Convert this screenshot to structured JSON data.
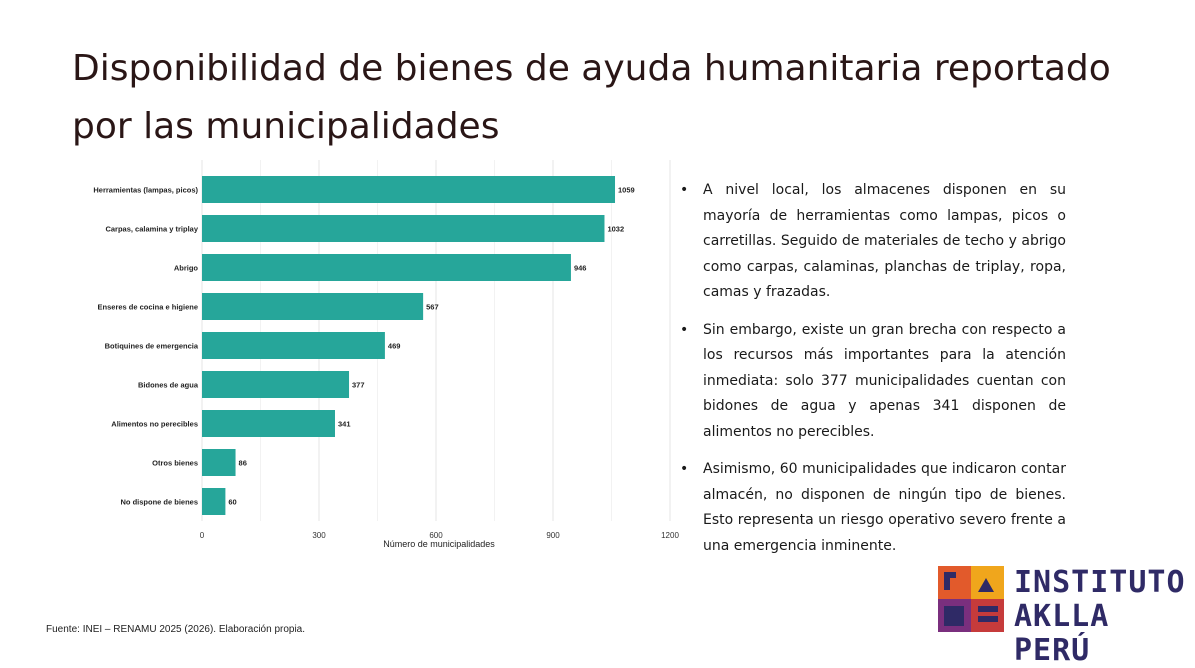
{
  "title": "Disponibilidad de bienes de ayuda humanitaria reportado por las municipalidades",
  "chart_data": {
    "type": "bar",
    "orientation": "horizontal",
    "categories": [
      "Herramientas (lampas, picos)",
      "Carpas, calamina y triplay",
      "Abrigo",
      "Enseres de cocina e higiene",
      "Botiquines de emergencia",
      "Bidones de agua",
      "Alimentos no perecibles",
      "Otros bienes",
      "No dispone de bienes"
    ],
    "values": [
      1059,
      1032,
      946,
      567,
      469,
      377,
      341,
      86,
      60
    ],
    "xlabel": "Número de municipalidades",
    "ylabel": "",
    "xlim": [
      0,
      1200
    ],
    "xticks": [
      0,
      300,
      600,
      900,
      1200
    ],
    "grid": true,
    "bar_color": "#26a69a"
  },
  "bullets": [
    "A nivel local, los almacenes disponen en su mayoría de herramientas como lampas, picos o carretillas. Seguido de materiales de techo y abrigo como carpas, calaminas, planchas de triplay, ropa, camas y frazadas.",
    "Sin embargo, existe un gran brecha con respecto a los recursos más importantes para la atención inmediata: solo 377 municipalidades cuentan con bidones de agua y apenas 341 disponen de alimentos no perecibles.",
    "Asimismo, 60 municipalidades que indicaron contar almacén, no disponen de ningún tipo de bienes. Esto representa un riesgo operativo severo frente a una emergencia inminente."
  ],
  "bullet_marker": "•",
  "source": "Fuente: INEI – RENAMU 2025 (2026). Elaboración propia.",
  "logo": {
    "line1": "INSTITUTO",
    "line2": "AKLLA PERÚ"
  }
}
